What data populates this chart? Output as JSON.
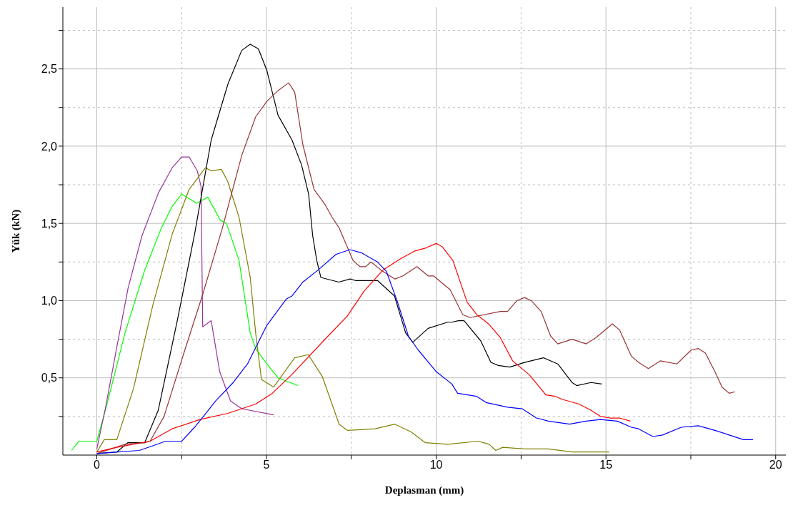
{
  "chart_data": {
    "type": "line",
    "xlabel": "Deplasman (mm)",
    "ylabel": "Yük (kN)",
    "xlim": [
      -1,
      20.3
    ],
    "ylim": [
      0,
      2.9
    ],
    "xticks": [
      0,
      {
        "value": 2.5,
        "label": null
      },
      5,
      {
        "value": 7.5,
        "label": null
      },
      10,
      {
        "value": 12.5,
        "label": null
      },
      15,
      {
        "value": 17.5,
        "label": null
      },
      20
    ],
    "yticks": [
      {
        "value": 0.25,
        "label": null
      },
      {
        "value": 0.5,
        "label": "0,5"
      },
      {
        "value": 0.75,
        "label": null
      },
      {
        "value": 1,
        "label": "1,0"
      },
      {
        "value": 1.25,
        "label": null
      },
      {
        "value": 1.5,
        "label": "1,5"
      },
      {
        "value": 1.75,
        "label": null
      },
      {
        "value": 2,
        "label": "2,0"
      },
      {
        "value": 2.25,
        "label": null
      },
      {
        "value": 2.5,
        "label": "2,5"
      },
      {
        "value": 2.75,
        "label": null
      }
    ],
    "grid": true,
    "marker": "none",
    "line_style": "solid",
    "series": [
      {
        "color": "#00ff00",
        "x": [
          -0.74,
          -0.53,
          0,
          0.3,
          0.83,
          1.4,
          1.9,
          2.22,
          2.5,
          2.94,
          3.27,
          3.64,
          3.82,
          4.19,
          4.52,
          4.68,
          5.01,
          5.34,
          5.92
        ],
        "values": [
          0.03,
          0.09,
          0.09,
          0.33,
          0.79,
          1.19,
          1.47,
          1.61,
          1.69,
          1.63,
          1.67,
          1.52,
          1.5,
          1.26,
          0.79,
          0.69,
          0.59,
          0.5,
          0.45
        ]
      },
      {
        "color": "#993399",
        "x": [
          0,
          0.26,
          0.59,
          0.92,
          1.33,
          1.82,
          2.22,
          2.5,
          2.72,
          2.96,
          3.07,
          3.12,
          3.37,
          3.62,
          3.94,
          4.27,
          5.21
        ],
        "values": [
          0.04,
          0.31,
          0.7,
          1.08,
          1.42,
          1.7,
          1.86,
          1.93,
          1.93,
          1.84,
          1.74,
          0.83,
          0.87,
          0.54,
          0.35,
          0.3,
          0.26
        ]
      },
      {
        "color": "#808000",
        "x": [
          0,
          0.22,
          0.59,
          1.08,
          1.65,
          2.22,
          2.72,
          3.2,
          3.37,
          3.67,
          3.86,
          4.19,
          4.52,
          4.68,
          4.85,
          5.21,
          5.83,
          6.23,
          6.64,
          7.14,
          7.38,
          8.2,
          8.78,
          9.26,
          9.68,
          10.34,
          11.23,
          11.56,
          11.75,
          11.96,
          12.6,
          13.3,
          14,
          15.1
        ],
        "values": [
          0.02,
          0.1,
          0.1,
          0.43,
          0.97,
          1.43,
          1.72,
          1.86,
          1.84,
          1.85,
          1.77,
          1.54,
          1.15,
          0.79,
          0.49,
          0.44,
          0.63,
          0.65,
          0.51,
          0.2,
          0.16,
          0.17,
          0.2,
          0.15,
          0.08,
          0.07,
          0.09,
          0.07,
          0.03,
          0.05,
          0.04,
          0.04,
          0.02,
          0.02
        ]
      },
      {
        "color": "#000000",
        "x": [
          0,
          0.59,
          0.91,
          1.41,
          1.81,
          2.38,
          2.88,
          3.37,
          3.86,
          4.27,
          4.52,
          4.76,
          5.01,
          5.34,
          5.75,
          6.03,
          6.24,
          6.36,
          6.48,
          6.6,
          7.13,
          7.46,
          7.62,
          8.27,
          8.77,
          9.1,
          9.31,
          9.76,
          10.33,
          10.45,
          10.65,
          10.82,
          11.31,
          11.61,
          11.83,
          12.17,
          12.6,
          13.16,
          13.58,
          14,
          14.14,
          14.56,
          14.88
        ],
        "values": [
          0.01,
          0.02,
          0.08,
          0.08,
          0.29,
          0.88,
          1.43,
          2.04,
          2.4,
          2.62,
          2.66,
          2.63,
          2.49,
          2.2,
          2.04,
          1.88,
          1.69,
          1.42,
          1.26,
          1.15,
          1.12,
          1.14,
          1.13,
          1.13,
          1.03,
          0.79,
          0.73,
          0.82,
          0.86,
          0.86,
          0.87,
          0.87,
          0.74,
          0.6,
          0.58,
          0.57,
          0.6,
          0.63,
          0.59,
          0.47,
          0.45,
          0.47,
          0.46
        ]
      },
      {
        "color": "#993333",
        "x": [
          0,
          0.42,
          0.83,
          1.41,
          1.57,
          1.98,
          2.55,
          3.12,
          3.7,
          4.27,
          4.68,
          5.01,
          5.34,
          5.65,
          5.83,
          6.07,
          6.4,
          6.73,
          6.93,
          7.14,
          7.55,
          7.75,
          7.92,
          8.08,
          8.36,
          8.78,
          9.02,
          9.43,
          9.76,
          9.92,
          10.41,
          10.78,
          10.99,
          11.89,
          12.1,
          12.38,
          12.6,
          12.8,
          13.09,
          13.37,
          13.58,
          14,
          14.42,
          14.7,
          15.19,
          15.4,
          15.75,
          15.96,
          16.25,
          16.6,
          17.09,
          17.51,
          17.72,
          17.93,
          18.21,
          18.42,
          18.63,
          18.8
        ],
        "values": [
          0.01,
          0.04,
          0.07,
          0.08,
          0.09,
          0.25,
          0.65,
          1.04,
          1.47,
          1.94,
          2.19,
          2.29,
          2.36,
          2.41,
          2.35,
          2.01,
          1.72,
          1.62,
          1.54,
          1.47,
          1.26,
          1.22,
          1.22,
          1.25,
          1.2,
          1.14,
          1.16,
          1.22,
          1.16,
          1.16,
          1.07,
          0.91,
          0.89,
          0.93,
          0.93,
          1,
          1.02,
          1,
          0.93,
          0.77,
          0.72,
          0.75,
          0.72,
          0.76,
          0.85,
          0.81,
          0.64,
          0.6,
          0.56,
          0.61,
          0.59,
          0.68,
          0.69,
          0.66,
          0.54,
          0.44,
          0.4,
          0.41
        ]
      },
      {
        "color": "#ff0000",
        "x": [
          0,
          0.59,
          1.57,
          2.22,
          3.04,
          3.86,
          4.68,
          5.17,
          5.74,
          6.81,
          7.38,
          7.87,
          8.44,
          8.94,
          9.35,
          9.68,
          10,
          10.17,
          10.49,
          10.91,
          11.19,
          11.54,
          11.89,
          12.25,
          12.74,
          13.23,
          13.51,
          13.72,
          14.21,
          14.56,
          14.84,
          15.12,
          15.4,
          15.72
        ],
        "values": [
          0.02,
          0.05,
          0.09,
          0.17,
          0.23,
          0.27,
          0.33,
          0.4,
          0.52,
          0.77,
          0.9,
          1.06,
          1.2,
          1.27,
          1.32,
          1.34,
          1.37,
          1.35,
          1.26,
          0.99,
          0.91,
          0.85,
          0.76,
          0.61,
          0.52,
          0.39,
          0.38,
          0.36,
          0.33,
          0.29,
          0.25,
          0.24,
          0.24,
          0.22
        ]
      },
      {
        "color": "#0000ff",
        "x": [
          0,
          1.25,
          1.65,
          2.03,
          2.5,
          2.88,
          3.21,
          3.5,
          4.02,
          4.44,
          5.01,
          5.58,
          5.75,
          6.07,
          6.53,
          7.05,
          7.46,
          7.79,
          8.27,
          8.53,
          8.86,
          9.18,
          9.47,
          10,
          10.46,
          10.63,
          11.19,
          11.47,
          12.1,
          12.53,
          12.95,
          13.3,
          13.93,
          14.42,
          14.84,
          15.33,
          15.75,
          15.96,
          16.38,
          16.67,
          17.22,
          17.72,
          18.21,
          18.63,
          19.05,
          19.33
        ],
        "values": [
          0.01,
          0.03,
          0.06,
          0.09,
          0.09,
          0.18,
          0.27,
          0.35,
          0.47,
          0.59,
          0.84,
          1.01,
          1.03,
          1.12,
          1.2,
          1.3,
          1.33,
          1.31,
          1.25,
          1.19,
          0.99,
          0.77,
          0.68,
          0.54,
          0.46,
          0.4,
          0.38,
          0.34,
          0.31,
          0.3,
          0.24,
          0.22,
          0.2,
          0.22,
          0.23,
          0.22,
          0.18,
          0.17,
          0.12,
          0.13,
          0.18,
          0.19,
          0.16,
          0.13,
          0.1,
          0.1
        ]
      }
    ]
  }
}
